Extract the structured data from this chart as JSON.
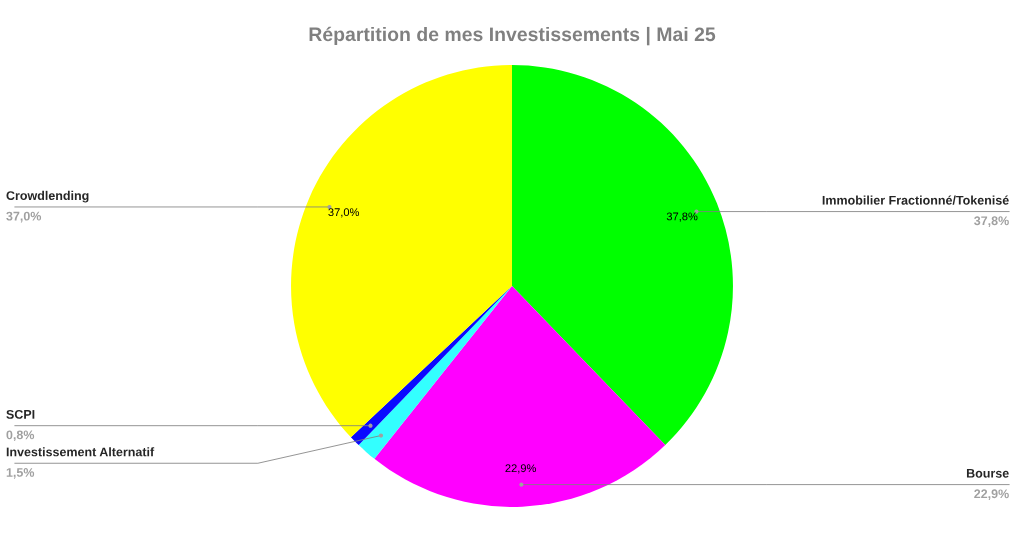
{
  "chart_data": {
    "type": "pie",
    "title": "Répartition de mes Investissements | Mai 25",
    "categories": [
      "Immobilier Fractionné/Tokenisé",
      "Bourse",
      "Investissement Alternatif",
      "SCPI",
      "Crowdlending"
    ],
    "values": [
      37.8,
      22.9,
      1.5,
      0.8,
      37.0
    ],
    "colors": [
      "#00ff00",
      "#ff00ff",
      "#33ffff",
      "#0a0aff",
      "#ffff00"
    ],
    "value_labels": [
      "37,8%",
      "22,9%",
      "1,5%",
      "0,8%",
      "37,0%"
    ],
    "annotations": [
      {
        "text": "37,8%",
        "x": "Immobilier Fractionné/Tokenisé"
      },
      {
        "text": "22,9%",
        "x": "Bourse"
      },
      {
        "text": "37,0%",
        "x": "Crowdlending"
      }
    ],
    "legend": false
  }
}
